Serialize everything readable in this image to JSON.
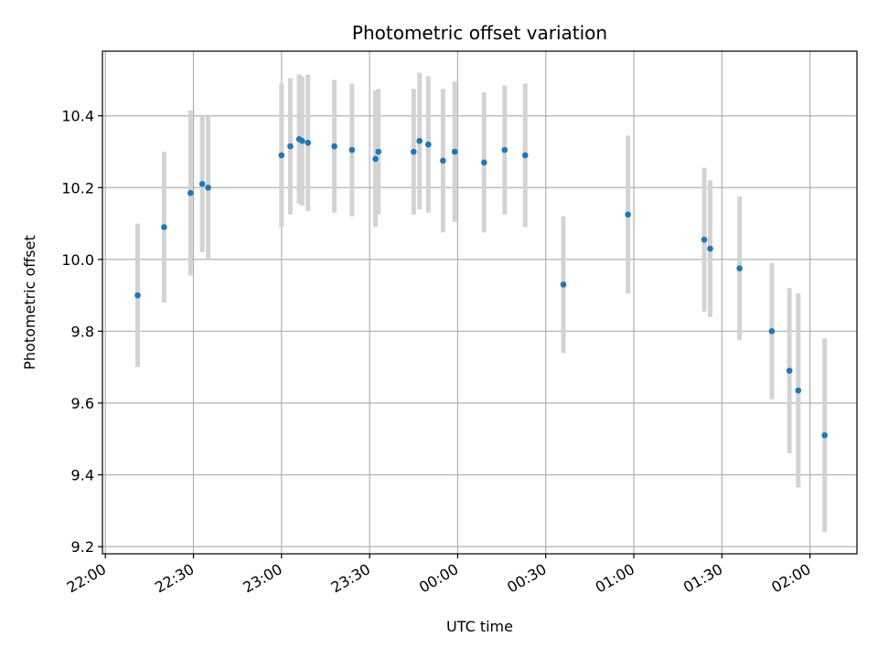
{
  "chart_data": {
    "type": "scatter",
    "title": "Photometric offset variation",
    "xlabel": "UTC time",
    "ylabel": "Photometric offset",
    "grid": true,
    "x_tick_labels": [
      "22:00",
      "22:30",
      "23:00",
      "23:30",
      "00:00",
      "00:30",
      "01:00",
      "01:30",
      "02:00"
    ],
    "y_tick_labels": [
      "9.2",
      "9.4",
      "9.6",
      "9.8",
      "10.0",
      "10.2",
      "10.4"
    ],
    "y_ticks": [
      9.2,
      9.4,
      9.6,
      9.8,
      10.0,
      10.2,
      10.4
    ],
    "xlim": [
      "21:59",
      "02:16"
    ],
    "ylim": [
      9.18,
      10.58
    ],
    "colors": {
      "marker": "#1f77b4",
      "errorbar": "#d3d3d3",
      "grid": "#b0b0b0"
    },
    "series": [
      {
        "points": [
          {
            "x": "22:11",
            "y": 9.9,
            "err": 0.2
          },
          {
            "x": "22:20",
            "y": 10.09,
            "err": 0.21
          },
          {
            "x": "22:29",
            "y": 10.185,
            "err": 0.23
          },
          {
            "x": "22:33",
            "y": 10.21,
            "err": 0.19
          },
          {
            "x": "22:35",
            "y": 10.2,
            "err": 0.2
          },
          {
            "x": "23:00",
            "y": 10.29,
            "err": 0.2
          },
          {
            "x": "23:03",
            "y": 10.315,
            "err": 0.19
          },
          {
            "x": "23:06",
            "y": 10.335,
            "err": 0.18
          },
          {
            "x": "23:07",
            "y": 10.33,
            "err": 0.18
          },
          {
            "x": "23:09",
            "y": 10.325,
            "err": 0.19
          },
          {
            "x": "23:18",
            "y": 10.315,
            "err": 0.185
          },
          {
            "x": "23:24",
            "y": 10.305,
            "err": 0.185
          },
          {
            "x": "23:32",
            "y": 10.28,
            "err": 0.19
          },
          {
            "x": "23:33",
            "y": 10.3,
            "err": 0.175
          },
          {
            "x": "23:45",
            "y": 10.3,
            "err": 0.175
          },
          {
            "x": "23:47",
            "y": 10.33,
            "err": 0.19
          },
          {
            "x": "23:50",
            "y": 10.32,
            "err": 0.19
          },
          {
            "x": "23:55",
            "y": 10.275,
            "err": 0.2
          },
          {
            "x": "23:59",
            "y": 10.3,
            "err": 0.195
          },
          {
            "x": "00:09",
            "y": 10.27,
            "err": 0.195
          },
          {
            "x": "00:16",
            "y": 10.305,
            "err": 0.18
          },
          {
            "x": "00:23",
            "y": 10.29,
            "err": 0.2
          },
          {
            "x": "00:36",
            "y": 9.93,
            "err": 0.19
          },
          {
            "x": "00:58",
            "y": 10.125,
            "err": 0.22
          },
          {
            "x": "01:24",
            "y": 10.055,
            "err": 0.2
          },
          {
            "x": "01:26",
            "y": 10.03,
            "err": 0.19
          },
          {
            "x": "01:36",
            "y": 9.975,
            "err": 0.2
          },
          {
            "x": "01:47",
            "y": 9.8,
            "err": 0.19
          },
          {
            "x": "01:53",
            "y": 9.69,
            "err": 0.23
          },
          {
            "x": "01:56",
            "y": 9.635,
            "err": 0.27
          },
          {
            "x": "02:05",
            "y": 9.51,
            "err": 0.27
          }
        ]
      }
    ]
  }
}
